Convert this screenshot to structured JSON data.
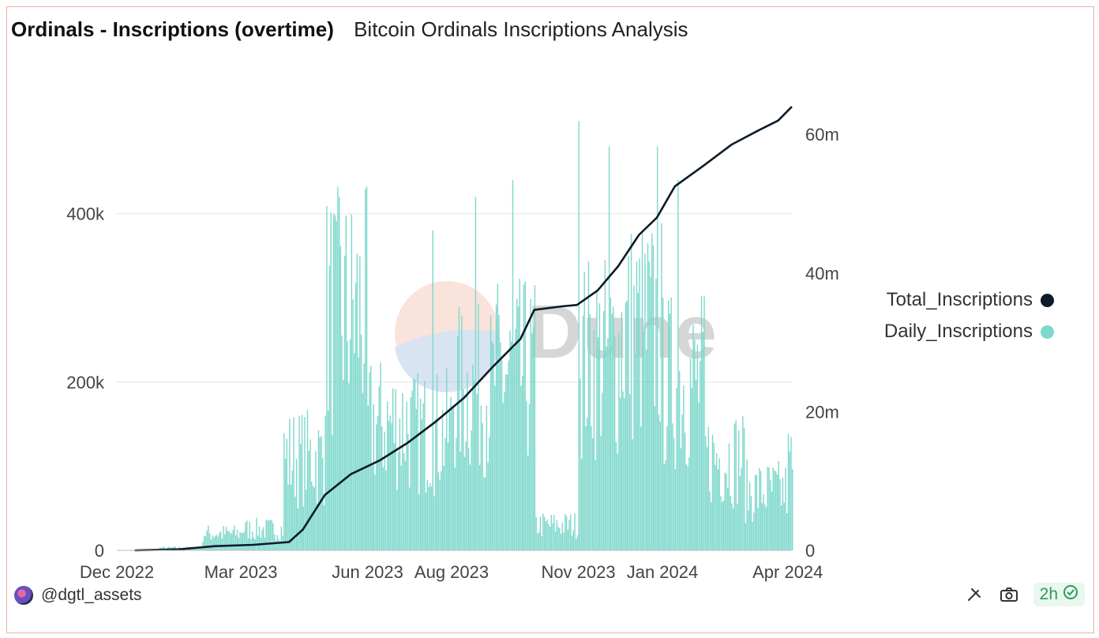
{
  "header": {
    "title": "Ordinals - Inscriptions (overtime)",
    "subtitle": "Bitcoin Ordinals Inscriptions Analysis"
  },
  "footer": {
    "author": "@dgtl_assets",
    "refresh_label": "2h"
  },
  "watermark": "Dune",
  "colors": {
    "daily": "#7fd8cc",
    "total": "#0d1b2a",
    "grid": "#ececec",
    "border": "#eab3a4",
    "badge_text": "#2e9b5c"
  },
  "icons": [
    "avatar",
    "embed-icon",
    "camera-icon",
    "check-badge-icon"
  ],
  "chart_data": {
    "type": "bar+line",
    "x_ticks": [
      "Dec 2022",
      "Mar 2023",
      "Jun 2023",
      "Aug 2023",
      "Nov 2023",
      "Jan 2024",
      "Apr 2024"
    ],
    "y_left_ticks": [
      "0",
      "200k",
      "400k"
    ],
    "y_left_range": [
      0,
      560000
    ],
    "y_right_ticks": [
      "0",
      "20m",
      "40m",
      "60m"
    ],
    "y_right_range": [
      0,
      68000000
    ],
    "grid": true,
    "legend_position": "right",
    "series": [
      {
        "name": "Daily_Inscriptions",
        "kind": "bar",
        "axis": "left",
        "monthly_values": [
          {
            "month": "Dec 2022",
            "avg": 500
          },
          {
            "month": "Jan 2023",
            "avg": 3000
          },
          {
            "month": "Feb 2023",
            "avg": 20000
          },
          {
            "month": "Mar 2023",
            "avg": 25000
          },
          {
            "month": "Apr 2023",
            "avg": 110000
          },
          {
            "month": "May 2023",
            "avg": 280000
          },
          {
            "month": "Jun 2023",
            "avg": 150000
          },
          {
            "month": "Jul 2023",
            "avg": 140000
          },
          {
            "month": "Aug 2023",
            "avg": 190000
          },
          {
            "month": "Sep 2023",
            "avg": 210000
          },
          {
            "month": "Oct 2023",
            "avg": 30000
          },
          {
            "month": "Nov 2023",
            "avg": 230000
          },
          {
            "month": "Dec 2023",
            "avg": 260000
          },
          {
            "month": "Jan 2024",
            "avg": 200000
          },
          {
            "month": "Feb 2024",
            "avg": 110000
          },
          {
            "month": "Mar 2024",
            "avg": 70000
          },
          {
            "month": "Apr 2024",
            "avg": 100000
          }
        ],
        "peak_days": [
          {
            "date": "2023-05-07",
            "value": 400000
          },
          {
            "date": "2023-07-18",
            "value": 380000
          },
          {
            "date": "2023-08-18",
            "value": 420000
          },
          {
            "date": "2023-09-14",
            "value": 440000
          },
          {
            "date": "2023-11-01",
            "value": 510000
          },
          {
            "date": "2023-11-23",
            "value": 480000
          },
          {
            "date": "2023-12-28",
            "value": 480000
          },
          {
            "date": "2024-01-12",
            "value": 440000
          }
        ]
      },
      {
        "name": "Total_Inscriptions",
        "kind": "line",
        "axis": "right",
        "x": [
          "2022-12-14",
          "2023-01-15",
          "2023-02-10",
          "2023-03-10",
          "2023-04-05",
          "2023-04-15",
          "2023-05-01",
          "2023-05-20",
          "2023-06-10",
          "2023-06-30",
          "2023-07-20",
          "2023-08-10",
          "2023-08-31",
          "2023-09-20",
          "2023-09-30",
          "2023-10-20",
          "2023-10-31",
          "2023-11-15",
          "2023-11-30",
          "2023-12-15",
          "2023-12-28",
          "2024-01-10",
          "2024-01-31",
          "2024-02-20",
          "2024-03-10",
          "2024-03-25",
          "2024-04-04"
        ],
        "y": [
          0,
          150000,
          600000,
          800000,
          1200000,
          3000000,
          8000000,
          11000000,
          13000000,
          15500000,
          18500000,
          22000000,
          26500000,
          30500000,
          34700000,
          35200000,
          35400000,
          37500000,
          41000000,
          45500000,
          48000000,
          52500000,
          55500000,
          58500000,
          60500000,
          62000000,
          64000000
        ]
      }
    ]
  }
}
